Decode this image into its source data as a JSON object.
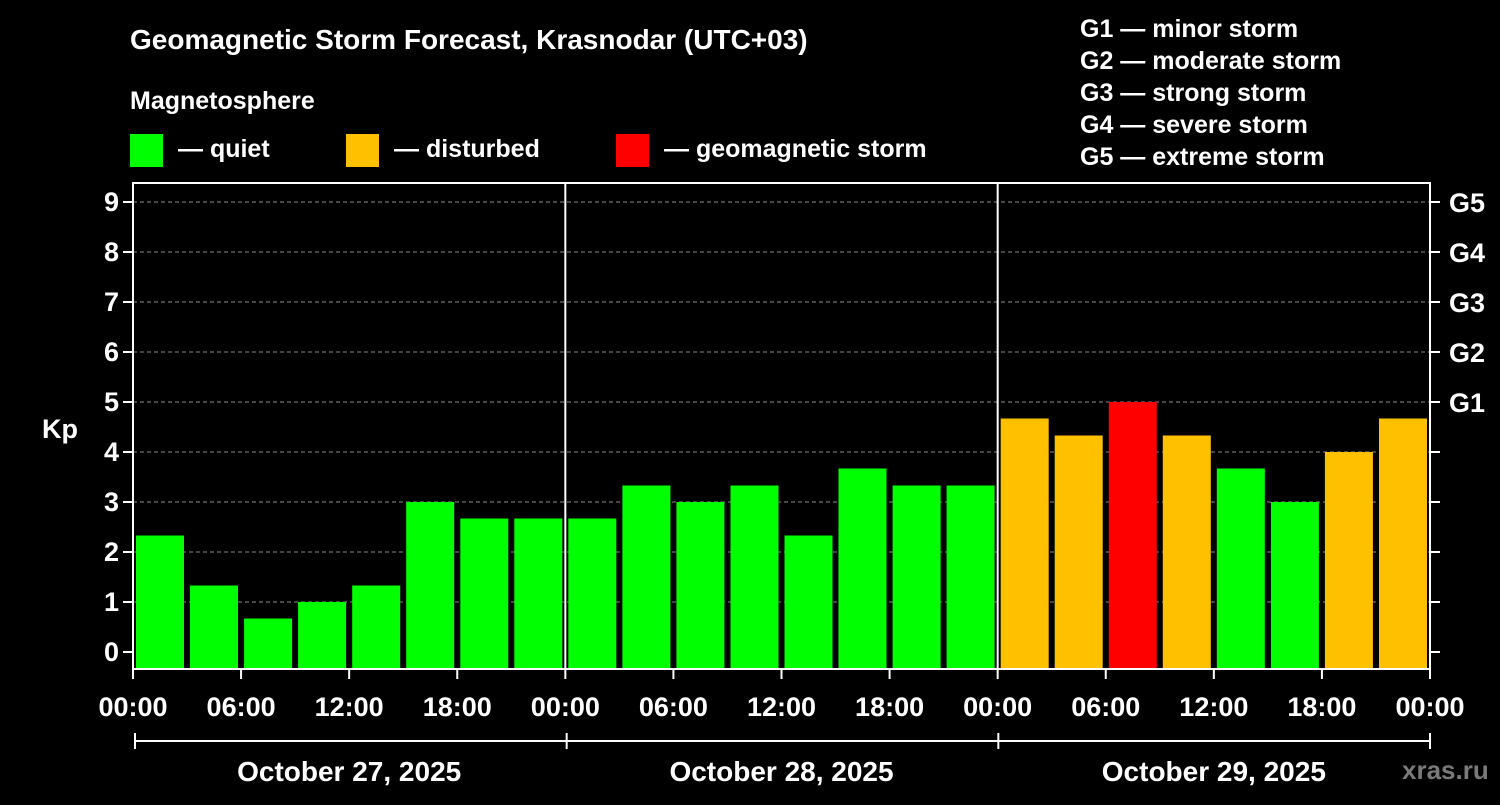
{
  "chart_data": {
    "type": "bar",
    "title": "Geomagnetic Storm Forecast, Krasnodar (UTC+03)",
    "subtitle": "Magnetosphere",
    "ylabel": "Kp",
    "ylim": [
      0,
      9
    ],
    "yticks": [
      "0",
      "1",
      "2",
      "3",
      "4",
      "5",
      "6",
      "7",
      "8",
      "9"
    ],
    "right_ticks": [
      {
        "kp": 5,
        "label": "G1"
      },
      {
        "kp": 6,
        "label": "G2"
      },
      {
        "kp": 7,
        "label": "G3"
      },
      {
        "kp": 8,
        "label": "G4"
      },
      {
        "kp": 9,
        "label": "G5"
      }
    ],
    "xticks": [
      "00:00",
      "06:00",
      "12:00",
      "18:00",
      "00:00",
      "06:00",
      "12:00",
      "18:00",
      "00:00",
      "06:00",
      "12:00",
      "18:00",
      "00:00"
    ],
    "days": [
      "October 27, 2025",
      "October 28, 2025",
      "October 29, 2025"
    ],
    "values": [
      2.33,
      1.33,
      0.67,
      1.0,
      1.33,
      3.0,
      2.67,
      2.67,
      2.67,
      3.33,
      3.0,
      3.33,
      2.33,
      3.67,
      3.33,
      3.33,
      4.67,
      4.33,
      5.0,
      4.33,
      3.67,
      3.0,
      4.0,
      4.67
    ],
    "statuses": [
      "quiet",
      "quiet",
      "quiet",
      "quiet",
      "quiet",
      "quiet",
      "quiet",
      "quiet",
      "quiet",
      "quiet",
      "quiet",
      "quiet",
      "quiet",
      "quiet",
      "quiet",
      "quiet",
      "disturbed",
      "disturbed",
      "storm",
      "disturbed",
      "quiet",
      "quiet",
      "disturbed",
      "disturbed"
    ],
    "colors": {
      "quiet": "#00ff00",
      "disturbed": "#ffc000",
      "storm": "#ff0000"
    },
    "legend": [
      {
        "key": "quiet",
        "label": "— quiet"
      },
      {
        "key": "disturbed",
        "label": "— disturbed"
      },
      {
        "key": "storm",
        "label": "— geomagnetic storm"
      }
    ],
    "g_scale": [
      "G1 — minor storm",
      "G2 — moderate storm",
      "G3 — strong storm",
      "G4 — severe storm",
      "G5 — extreme storm"
    ],
    "grid": true
  },
  "watermark": "xras.ru"
}
